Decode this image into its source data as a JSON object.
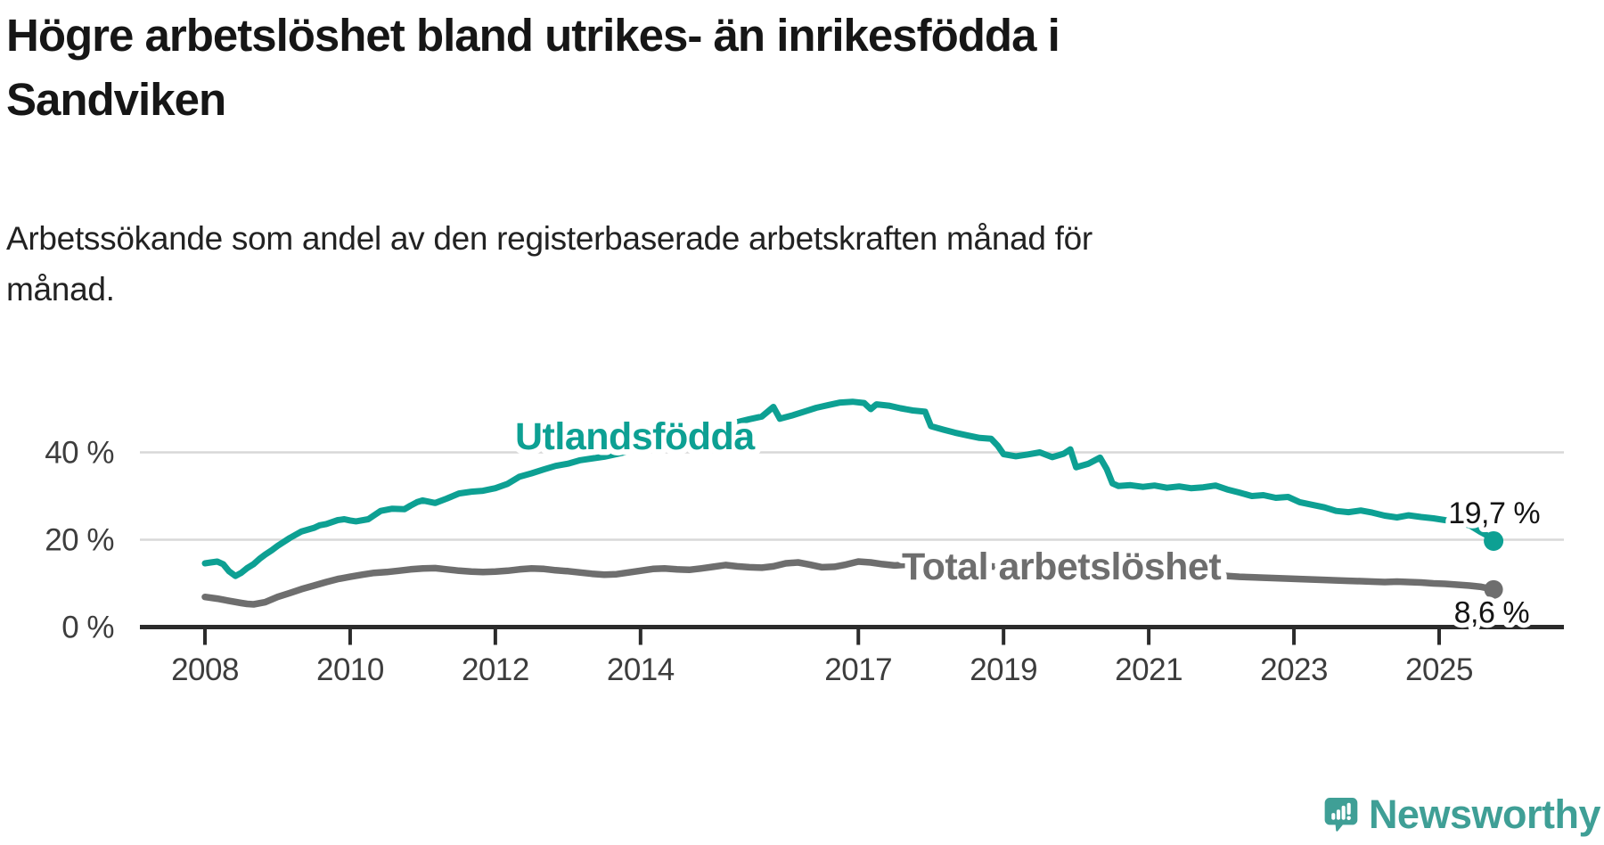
{
  "header": {
    "title": "Högre arbetslöshet bland utrikes- än inrikesfödda i Sandviken",
    "title_lines": [
      "Högre arbetslöshet bland utrikes- än inrikesfödda i",
      "Sandviken"
    ],
    "subtitle": "Arbetssökande som andel av den registerbaserade arbetskraften månad för månad.",
    "subtitle_lines": [
      "Arbetssökande som andel av den registerbaserade arbetskraften månad för",
      "månad."
    ]
  },
  "branding": {
    "logo_text": "Newsworthy",
    "logo_color": "#3f9f96",
    "logo_icon": "speech-bubble-bar-chart"
  },
  "chart_data": {
    "type": "line",
    "title": "Högre arbetslöshet bland utrikes- än inrikesfödda i Sandviken",
    "xlabel": "",
    "ylabel": "",
    "grid": "horizontal",
    "x_axis": {
      "min": 2007.1,
      "max": 2026.7,
      "ticks": [
        2008,
        2010,
        2012,
        2014,
        2017,
        2019,
        2021,
        2023,
        2025
      ],
      "tick_labels": [
        "2008",
        "2010",
        "2012",
        "2014",
        "2017",
        "2019",
        "2021",
        "2023",
        "2025"
      ]
    },
    "y_axis": {
      "min": 0,
      "max": 56,
      "ticks": [
        0,
        20,
        40
      ],
      "tick_labels": [
        "0 %",
        "20 %",
        "40 %"
      ]
    },
    "series": [
      {
        "name": "Utlandsfödda",
        "color": "#0da093",
        "end_label": "19,7 %",
        "end_value": 19.7,
        "points": [
          [
            2008.0,
            14.6
          ],
          [
            2008.08,
            14.8
          ],
          [
            2008.17,
            15.0
          ],
          [
            2008.25,
            14.4
          ],
          [
            2008.33,
            12.8
          ],
          [
            2008.42,
            11.7
          ],
          [
            2008.5,
            12.4
          ],
          [
            2008.58,
            13.5
          ],
          [
            2008.67,
            14.4
          ],
          [
            2008.75,
            15.6
          ],
          [
            2008.83,
            16.6
          ],
          [
            2008.92,
            17.6
          ],
          [
            2009.0,
            18.6
          ],
          [
            2009.17,
            20.4
          ],
          [
            2009.33,
            21.9
          ],
          [
            2009.5,
            22.7
          ],
          [
            2009.58,
            23.3
          ],
          [
            2009.67,
            23.6
          ],
          [
            2009.83,
            24.5
          ],
          [
            2009.92,
            24.7
          ],
          [
            2010.0,
            24.4
          ],
          [
            2010.08,
            24.2
          ],
          [
            2010.25,
            24.7
          ],
          [
            2010.33,
            25.6
          ],
          [
            2010.42,
            26.6
          ],
          [
            2010.58,
            27.1
          ],
          [
            2010.75,
            27.0
          ],
          [
            2010.83,
            27.8
          ],
          [
            2010.92,
            28.6
          ],
          [
            2011.0,
            29.0
          ],
          [
            2011.17,
            28.4
          ],
          [
            2011.33,
            29.4
          ],
          [
            2011.5,
            30.6
          ],
          [
            2011.67,
            31.0
          ],
          [
            2011.83,
            31.2
          ],
          [
            2012.0,
            31.8
          ],
          [
            2012.17,
            32.8
          ],
          [
            2012.33,
            34.4
          ],
          [
            2012.5,
            35.2
          ],
          [
            2012.67,
            36.1
          ],
          [
            2012.83,
            36.9
          ],
          [
            2013.0,
            37.4
          ],
          [
            2013.17,
            38.2
          ],
          [
            2013.33,
            38.6
          ],
          [
            2013.5,
            39.0
          ],
          [
            2013.67,
            39.6
          ],
          [
            2013.83,
            40.2
          ],
          [
            2014.0,
            40.9
          ],
          [
            2014.17,
            41.7
          ],
          [
            2014.33,
            42.3
          ],
          [
            2014.5,
            42.9
          ],
          [
            2014.67,
            43.5
          ],
          [
            2014.83,
            44.3
          ],
          [
            2015.0,
            45.1
          ],
          [
            2015.17,
            46.1
          ],
          [
            2015.33,
            46.9
          ],
          [
            2015.5,
            47.6
          ],
          [
            2015.67,
            48.2
          ],
          [
            2015.83,
            50.4
          ],
          [
            2015.92,
            47.7
          ],
          [
            2016.08,
            48.4
          ],
          [
            2016.25,
            49.3
          ],
          [
            2016.42,
            50.2
          ],
          [
            2016.58,
            50.8
          ],
          [
            2016.75,
            51.4
          ],
          [
            2016.92,
            51.6
          ],
          [
            2017.08,
            51.3
          ],
          [
            2017.17,
            49.9
          ],
          [
            2017.25,
            51.0
          ],
          [
            2017.42,
            50.7
          ],
          [
            2017.58,
            50.1
          ],
          [
            2017.75,
            49.6
          ],
          [
            2017.92,
            49.3
          ],
          [
            2018.0,
            46.0
          ],
          [
            2018.17,
            45.2
          ],
          [
            2018.33,
            44.5
          ],
          [
            2018.5,
            43.9
          ],
          [
            2018.67,
            43.3
          ],
          [
            2018.83,
            43.1
          ],
          [
            2018.92,
            41.5
          ],
          [
            2019.0,
            39.6
          ],
          [
            2019.17,
            39.1
          ],
          [
            2019.33,
            39.5
          ],
          [
            2019.5,
            40.0
          ],
          [
            2019.67,
            38.9
          ],
          [
            2019.83,
            39.7
          ],
          [
            2019.92,
            40.7
          ],
          [
            2020.0,
            36.6
          ],
          [
            2020.17,
            37.4
          ],
          [
            2020.33,
            38.8
          ],
          [
            2020.42,
            36.2
          ],
          [
            2020.5,
            32.9
          ],
          [
            2020.58,
            32.3
          ],
          [
            2020.75,
            32.5
          ],
          [
            2020.92,
            32.1
          ],
          [
            2021.08,
            32.4
          ],
          [
            2021.25,
            31.9
          ],
          [
            2021.42,
            32.2
          ],
          [
            2021.58,
            31.8
          ],
          [
            2021.75,
            32.0
          ],
          [
            2021.92,
            32.4
          ],
          [
            2022.08,
            31.5
          ],
          [
            2022.25,
            30.8
          ],
          [
            2022.42,
            30.0
          ],
          [
            2022.58,
            30.2
          ],
          [
            2022.75,
            29.6
          ],
          [
            2022.92,
            29.8
          ],
          [
            2023.08,
            28.6
          ],
          [
            2023.25,
            28.0
          ],
          [
            2023.42,
            27.4
          ],
          [
            2023.58,
            26.6
          ],
          [
            2023.75,
            26.3
          ],
          [
            2023.92,
            26.7
          ],
          [
            2024.08,
            26.2
          ],
          [
            2024.25,
            25.5
          ],
          [
            2024.42,
            25.1
          ],
          [
            2024.58,
            25.6
          ],
          [
            2024.75,
            25.2
          ],
          [
            2024.92,
            24.9
          ],
          [
            2025.08,
            24.5
          ],
          [
            2025.25,
            23.9
          ],
          [
            2025.42,
            23.3
          ],
          [
            2025.5,
            22.5
          ],
          [
            2025.58,
            21.7
          ],
          [
            2025.67,
            20.9
          ],
          [
            2025.75,
            19.7
          ]
        ]
      },
      {
        "name": "Total arbetslöshet",
        "color": "#6e6e6e",
        "end_label": "8,6 %",
        "end_value": 8.6,
        "points": [
          [
            2008.0,
            6.9
          ],
          [
            2008.17,
            6.5
          ],
          [
            2008.33,
            6.0
          ],
          [
            2008.5,
            5.5
          ],
          [
            2008.58,
            5.3
          ],
          [
            2008.67,
            5.2
          ],
          [
            2008.83,
            5.7
          ],
          [
            2009.0,
            6.9
          ],
          [
            2009.17,
            7.8
          ],
          [
            2009.33,
            8.7
          ],
          [
            2009.5,
            9.5
          ],
          [
            2009.67,
            10.3
          ],
          [
            2009.83,
            11.0
          ],
          [
            2010.0,
            11.5
          ],
          [
            2010.17,
            12.0
          ],
          [
            2010.33,
            12.4
          ],
          [
            2010.5,
            12.6
          ],
          [
            2010.67,
            12.9
          ],
          [
            2010.83,
            13.2
          ],
          [
            2011.0,
            13.4
          ],
          [
            2011.17,
            13.5
          ],
          [
            2011.33,
            13.2
          ],
          [
            2011.5,
            12.9
          ],
          [
            2011.67,
            12.7
          ],
          [
            2011.83,
            12.6
          ],
          [
            2012.0,
            12.7
          ],
          [
            2012.17,
            12.9
          ],
          [
            2012.33,
            13.2
          ],
          [
            2012.5,
            13.4
          ],
          [
            2012.67,
            13.3
          ],
          [
            2012.83,
            13.0
          ],
          [
            2013.0,
            12.8
          ],
          [
            2013.17,
            12.5
          ],
          [
            2013.33,
            12.2
          ],
          [
            2013.5,
            12.0
          ],
          [
            2013.67,
            12.1
          ],
          [
            2013.83,
            12.5
          ],
          [
            2014.0,
            12.9
          ],
          [
            2014.17,
            13.3
          ],
          [
            2014.33,
            13.4
          ],
          [
            2014.5,
            13.2
          ],
          [
            2014.67,
            13.1
          ],
          [
            2014.83,
            13.4
          ],
          [
            2015.0,
            13.8
          ],
          [
            2015.17,
            14.2
          ],
          [
            2015.33,
            13.9
          ],
          [
            2015.5,
            13.7
          ],
          [
            2015.67,
            13.6
          ],
          [
            2015.83,
            13.9
          ],
          [
            2016.0,
            14.6
          ],
          [
            2016.17,
            14.8
          ],
          [
            2016.33,
            14.3
          ],
          [
            2016.5,
            13.7
          ],
          [
            2016.67,
            13.8
          ],
          [
            2016.83,
            14.3
          ],
          [
            2017.0,
            15.0
          ],
          [
            2017.17,
            14.8
          ],
          [
            2017.33,
            14.4
          ],
          [
            2017.5,
            14.1
          ],
          [
            2017.67,
            14.3
          ],
          [
            2017.83,
            14.6
          ],
          [
            2018.0,
            14.8
          ],
          [
            2018.17,
            14.6
          ],
          [
            2018.33,
            14.4
          ],
          [
            2018.58,
            14.1
          ],
          [
            2018.83,
            13.9
          ],
          [
            2019.08,
            13.6
          ],
          [
            2019.33,
            13.4
          ],
          [
            2019.58,
            13.2
          ],
          [
            2019.83,
            13.1
          ],
          [
            2020.08,
            13.3
          ],
          [
            2020.33,
            13.7
          ],
          [
            2020.5,
            13.8
          ],
          [
            2020.75,
            13.5
          ],
          [
            2021.0,
            13.1
          ],
          [
            2021.25,
            12.7
          ],
          [
            2021.5,
            12.3
          ],
          [
            2021.75,
            12.0
          ],
          [
            2022.0,
            11.8
          ],
          [
            2022.25,
            11.5
          ],
          [
            2022.42,
            11.4
          ],
          [
            2022.58,
            11.3
          ],
          [
            2022.75,
            11.2
          ],
          [
            2022.92,
            11.1
          ],
          [
            2023.08,
            11.0
          ],
          [
            2023.25,
            10.9
          ],
          [
            2023.42,
            10.8
          ],
          [
            2023.58,
            10.7
          ],
          [
            2023.75,
            10.6
          ],
          [
            2023.92,
            10.5
          ],
          [
            2024.08,
            10.4
          ],
          [
            2024.25,
            10.3
          ],
          [
            2024.42,
            10.4
          ],
          [
            2024.58,
            10.3
          ],
          [
            2024.75,
            10.2
          ],
          [
            2024.92,
            10.0
          ],
          [
            2025.08,
            9.9
          ],
          [
            2025.25,
            9.7
          ],
          [
            2025.42,
            9.5
          ],
          [
            2025.58,
            9.2
          ],
          [
            2025.67,
            8.9
          ],
          [
            2025.75,
            8.6
          ]
        ]
      }
    ],
    "legend_position": "inline-labels",
    "colors": {
      "accent_teal": "#0da093",
      "series_gray": "#6e6e6e",
      "gridline": "#d8d8d8",
      "axis": "#2b2b2b"
    }
  }
}
